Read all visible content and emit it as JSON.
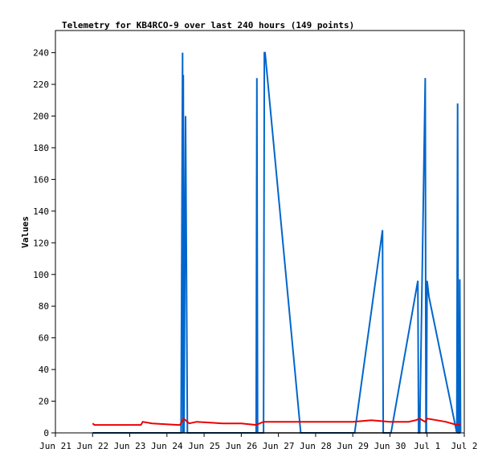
{
  "chart_data": {
    "type": "line",
    "title": "Telemetry for KB4RCO-9 over last 240 hours (149 points)",
    "xlabel": "",
    "ylabel": "Values",
    "xlim": [
      0,
      11
    ],
    "ylim": [
      0,
      254
    ],
    "grid": false,
    "legend": "none",
    "x_tick_labels": [
      "Jun 21",
      "Jun 22",
      "Jun 23",
      "Jun 24",
      "Jun 25",
      "Jun 26",
      "Jun 27",
      "Jun 28",
      "Jun 29",
      "Jun 30",
      "Jul 1",
      "Jul 2"
    ],
    "y_ticks": [
      0,
      20,
      40,
      60,
      80,
      100,
      120,
      140,
      160,
      180,
      200,
      220,
      240
    ],
    "series": [
      {
        "color": "#0066cc",
        "x": [
          1.0,
          3.38,
          3.42,
          3.43,
          3.44,
          3.46,
          3.5,
          3.55,
          3.6,
          5.4,
          5.42,
          5.44,
          5.6,
          5.62,
          5.64,
          6.6,
          6.62,
          8.05,
          8.8,
          8.82,
          8.84,
          9.03,
          9.75,
          9.77,
          9.8,
          9.95,
          9.97,
          9.98,
          10.0,
          10.05,
          10.8,
          10.82,
          10.84,
          10.87,
          10.88,
          10.9
        ],
        "y": [
          0,
          0,
          240,
          0,
          226,
          0,
          200,
          0,
          0,
          0,
          224,
          0,
          0,
          240,
          240,
          0,
          0,
          0,
          128,
          0,
          0,
          0,
          96,
          0,
          0,
          224,
          0,
          0,
          96,
          86,
          0,
          208,
          0,
          0,
          97,
          0
        ]
      },
      {
        "color": "#ee0000",
        "x": [
          1.0,
          1.05,
          1.4,
          2.3,
          2.35,
          2.6,
          3.3,
          3.35,
          3.45,
          3.6,
          3.8,
          4.5,
          5.0,
          5.4,
          5.6,
          5.7,
          6.0,
          7.0,
          8.0,
          8.5,
          9.0,
          9.5,
          9.7,
          9.8,
          9.95,
          10.0,
          10.5,
          10.8,
          10.9
        ],
        "y": [
          6,
          5,
          5,
          5,
          7,
          6,
          5,
          5,
          9,
          6,
          7,
          6,
          6,
          5,
          7,
          7,
          7,
          7,
          7,
          8,
          7,
          7,
          8,
          9,
          7,
          9,
          7,
          5,
          5
        ]
      },
      {
        "color": "#000000",
        "x": [
          1.0,
          10.9
        ],
        "y": [
          0,
          0
        ]
      }
    ]
  }
}
